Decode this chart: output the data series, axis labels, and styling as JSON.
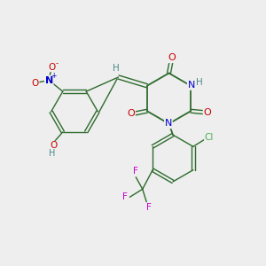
{
  "background_color": "#eeeeee",
  "bond_color": "#2d6b2d",
  "atom_colors": {
    "O": "#cc0000",
    "N": "#0000cc",
    "H": "#4a8a8a",
    "Cl": "#4caf50",
    "F": "#cc00cc"
  }
}
